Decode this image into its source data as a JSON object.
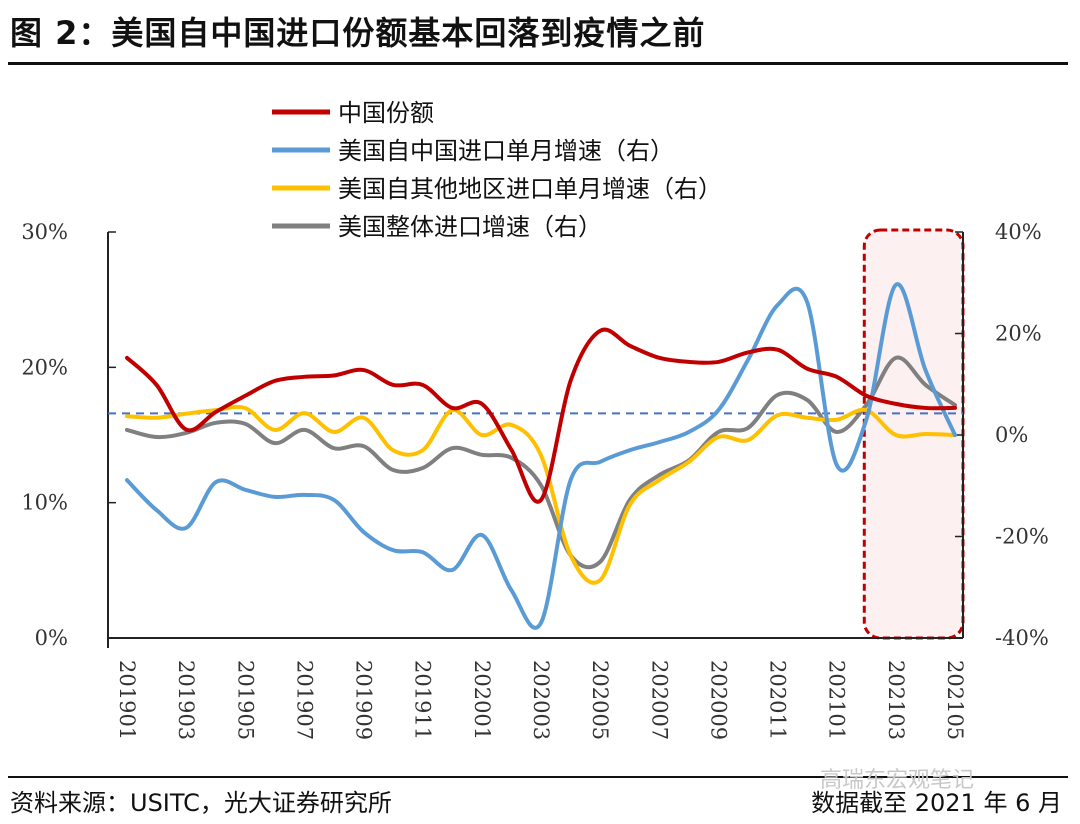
{
  "title": "图 2：美国自中国进口份额基本回落到疫情之前",
  "footer": {
    "source": "资料来源：USITC，光大证券研究所",
    "cutoff": "数据截至 2021 年 6 月",
    "watermark": "高瑞东宏观笔记"
  },
  "chart_data": {
    "type": "line",
    "title": "图 2：美国自中国进口份额基本回落到疫情之前",
    "x": [
      "201901",
      "201902",
      "201903",
      "201904",
      "201905",
      "201906",
      "201907",
      "201908",
      "201909",
      "201910",
      "201911",
      "201912",
      "202001",
      "202002",
      "202003",
      "202004",
      "202005",
      "202006",
      "202007",
      "202008",
      "202009",
      "202010",
      "202011",
      "202012",
      "202101",
      "202102",
      "202103",
      "202104",
      "202105"
    ],
    "xtick_labels": [
      "201901",
      "201903",
      "201905",
      "201907",
      "201909",
      "201911",
      "202001",
      "202003",
      "202005",
      "202007",
      "202009",
      "202011",
      "202101",
      "202103",
      "202105"
    ],
    "left_axis": {
      "ylim": [
        0,
        30
      ],
      "ticks": [
        "0%",
        "10%",
        "20%",
        "30%"
      ]
    },
    "right_axis": {
      "ylim": [
        -40,
        40
      ],
      "ticks": [
        "-40%",
        "-20%",
        "0%",
        "20%",
        "40%"
      ]
    },
    "series": [
      {
        "name": "中国份额",
        "axis": "left",
        "color": "#c00000",
        "values": [
          20.7,
          18.7,
          15.4,
          16.7,
          17.9,
          19.0,
          19.3,
          19.4,
          19.8,
          18.7,
          18.7,
          17.0,
          17.3,
          13.9,
          10.2,
          19.0,
          22.7,
          21.6,
          20.7,
          20.4,
          20.4,
          21.1,
          21.3,
          19.9,
          19.3,
          17.9,
          17.3,
          17.0,
          17.0
        ]
      },
      {
        "name": "美国自中国进口单月增速（右）",
        "axis": "right",
        "color": "#5b9bd5",
        "values": [
          -8.9,
          -14.8,
          -18.3,
          -9.3,
          -10.8,
          -12.2,
          -11.8,
          -12.8,
          -19.1,
          -22.7,
          -23.1,
          -26.6,
          -19.7,
          -30.6,
          -37.0,
          -8.9,
          -5.3,
          -3.0,
          -1.4,
          0.6,
          4.9,
          14.8,
          25.6,
          26.2,
          -5.9,
          3.0,
          29.6,
          12.8,
          0.0
        ]
      },
      {
        "name": "美国自其他地区进口单月增速（右）",
        "axis": "right",
        "color": "#ffc000",
        "values": [
          3.7,
          3.4,
          4.2,
          4.9,
          5.3,
          1.0,
          4.3,
          0.6,
          3.4,
          -3.0,
          -3.0,
          4.9,
          0.0,
          2.0,
          -4.0,
          -23.7,
          -28.6,
          -13.8,
          -8.9,
          -5.3,
          -0.4,
          -1.0,
          3.9,
          3.4,
          3.0,
          4.9,
          0.0,
          0.2,
          0.0
        ]
      },
      {
        "name": "美国整体进口增速（右）",
        "axis": "right",
        "color": "#808080",
        "values": [
          1.0,
          -0.4,
          0.4,
          2.4,
          2.2,
          -1.6,
          1.0,
          -2.6,
          -2.2,
          -6.9,
          -6.5,
          -2.6,
          -3.9,
          -4.5,
          -9.9,
          -23.7,
          -25.0,
          -12.8,
          -7.9,
          -5.0,
          0.6,
          1.4,
          7.9,
          6.9,
          0.6,
          5.9,
          15.2,
          9.9,
          5.9
        ]
      }
    ],
    "reference_line": {
      "axis": "left",
      "value": 16.6,
      "style": "dashed",
      "color": "#4472c4"
    },
    "highlight": {
      "from": "202102",
      "to": "202105",
      "color": "#c00000"
    },
    "legend": "top-center",
    "grid": false
  }
}
